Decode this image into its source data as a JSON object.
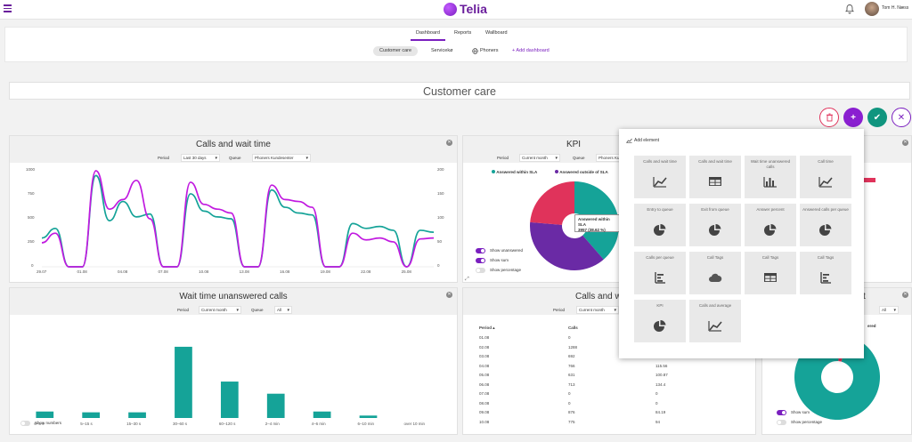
{
  "header": {
    "brand": "Telia",
    "user_name": "Tom H. Næss"
  },
  "tabs": [
    {
      "label": "Dashboard",
      "active": true
    },
    {
      "label": "Reports",
      "active": false
    },
    {
      "label": "Wallboard",
      "active": false
    }
  ],
  "dashboards": [
    {
      "label": "Customer care",
      "active": true
    },
    {
      "label": "Servicekø",
      "active": false
    },
    {
      "label": "Phoners",
      "active": false
    }
  ],
  "add_dashboard": "+ Add dashboard",
  "page_title": "Customer care",
  "colors": {
    "brand": "#7a1fbf",
    "teal": "#15a398",
    "pink": "#d9328a",
    "purple": "#6a2aa5",
    "danger": "#e0335b"
  },
  "widgets": {
    "calls_wait": {
      "title": "Calls and wait time",
      "period_label": "Period",
      "period_value": "Last 30 days",
      "queue_label": "Queue",
      "queue_value": "Phoners Kundesenter",
      "left_ticks": [
        "1000",
        "750",
        "500",
        "250",
        "0"
      ],
      "right_ticks": [
        "200",
        "150",
        "100",
        "50",
        "0"
      ],
      "x_ticks": [
        "29.07",
        "01.08",
        "04.08",
        "07.08",
        "10.08",
        "13.08",
        "16.08",
        "19.08",
        "22.08",
        "25.08"
      ]
    },
    "kpi": {
      "title": "KPI",
      "period_label": "Period",
      "period_value": "Current month",
      "queue_label": "Queue",
      "queue_value": "Phoners Kundesenter",
      "legend": [
        "Answered within SLA",
        "Answered outside of SLA"
      ],
      "tooltip_title": "Answered within SLA",
      "tooltip_value": "3957 (38.62 %)",
      "toggles": [
        "Show unanswered",
        "Show sum",
        "Show percentage"
      ]
    },
    "wait_unanswered": {
      "title": "Wait time unanswered calls",
      "period_label": "Period",
      "period_value": "Current month",
      "queue_label": "Queue",
      "queue_value": "All",
      "toggle_label": "Show numbers"
    },
    "calls_wait_table": {
      "title": "Calls and w",
      "period_label": "Period",
      "period_value": "Current month",
      "col_period": "Period ▴",
      "col_calls": "Calls",
      "rows": [
        [
          "01.08",
          "0",
          ""
        ],
        [
          "02.08",
          "1288",
          ""
        ],
        [
          "03.08",
          "692",
          ""
        ],
        [
          "04.08",
          "766",
          "115.56"
        ],
        [
          "05.08",
          "631",
          "100.87"
        ],
        [
          "06.08",
          "713",
          "134.4"
        ],
        [
          "07.08",
          "0",
          "0"
        ],
        [
          "08.08",
          "0",
          "0"
        ],
        [
          "09.08",
          "876",
          "84.19"
        ],
        [
          "10.08",
          "775",
          "94"
        ]
      ]
    },
    "right_widget": {
      "title_fragment": "t",
      "queue_value": "All",
      "legend_fragment": "ered",
      "toggles": [
        "Show sum",
        "Show percentage"
      ]
    }
  },
  "add_element": {
    "title": "Add element",
    "cards": [
      {
        "label": "Calls and wait time",
        "icon": "line-chart-icon"
      },
      {
        "label": "Calls and wait time",
        "icon": "table-icon"
      },
      {
        "label": "Wait time unanswered calls",
        "icon": "bar-chart-icon"
      },
      {
        "label": "Call time",
        "icon": "line-chart-icon"
      },
      {
        "label": "Entry to queue",
        "icon": "pie-chart-icon"
      },
      {
        "label": "Exit from queue",
        "icon": "pie-chart-icon"
      },
      {
        "label": "Answer percent",
        "icon": "pie-chart-icon"
      },
      {
        "label": "Answered calls per queue",
        "icon": "pie-chart-icon"
      },
      {
        "label": "Calls per queue",
        "icon": "list-chart-icon"
      },
      {
        "label": "Call Tags",
        "icon": "cloud-icon"
      },
      {
        "label": "Call Tags",
        "icon": "table-icon"
      },
      {
        "label": "Call Tags",
        "icon": "list-chart-icon"
      },
      {
        "label": "KPI",
        "icon": "pie-chart-icon"
      },
      {
        "label": "Calls and average",
        "icon": "line-chart-icon"
      }
    ]
  },
  "chart_data": [
    {
      "type": "line",
      "x": [
        "29.07",
        "30.07",
        "31.07",
        "01.08",
        "02.08",
        "03.08",
        "04.08",
        "05.08",
        "06.08",
        "07.08",
        "08.08",
        "09.08",
        "10.08",
        "11.08",
        "12.08",
        "13.08",
        "14.08",
        "15.08",
        "16.08",
        "17.08",
        "18.08",
        "19.08",
        "20.08",
        "21.08",
        "22.08",
        "23.08",
        "24.08",
        "25.08",
        "26.08",
        "27.08"
      ],
      "series": [
        {
          "color": "#15a398",
          "values": [
            300,
            400,
            0,
            0,
            950,
            480,
            680,
            520,
            550,
            0,
            0,
            760,
            580,
            520,
            500,
            0,
            0,
            800,
            620,
            560,
            540,
            0,
            0,
            450,
            400,
            420,
            380,
            0,
            380,
            360
          ]
        },
        {
          "color": "#c11ae0",
          "values": [
            250,
            350,
            0,
            0,
            1000,
            600,
            700,
            900,
            500,
            0,
            0,
            880,
            650,
            600,
            560,
            0,
            0,
            850,
            700,
            680,
            620,
            0,
            0,
            350,
            280,
            300,
            260,
            0,
            290,
            300
          ]
        }
      ],
      "ylim": [
        0,
        1000
      ],
      "y2lim": [
        0,
        200
      ]
    },
    {
      "type": "pie",
      "labels": [
        "Answered within SLA",
        "Answered outside of SLA",
        "Other"
      ],
      "values": [
        38.62,
        37.7,
        23.68
      ],
      "colors": [
        "#15a398",
        "#6a2aa5",
        "#e0335b"
      ]
    },
    {
      "type": "bar",
      "categories": [
        "0–5 s",
        "5–15 s",
        "15–30 s",
        "30–60 s",
        "60–120 s",
        "2–4 min",
        "4–6 min",
        "6–10 min",
        "over 10 min"
      ],
      "values": [
        8,
        7,
        7,
        88,
        45,
        30,
        8,
        3,
        0
      ],
      "ylim": [
        0,
        100
      ]
    },
    {
      "type": "pie",
      "values": [
        97,
        3
      ],
      "colors": [
        "#15a398",
        "#e0335b"
      ]
    }
  ]
}
